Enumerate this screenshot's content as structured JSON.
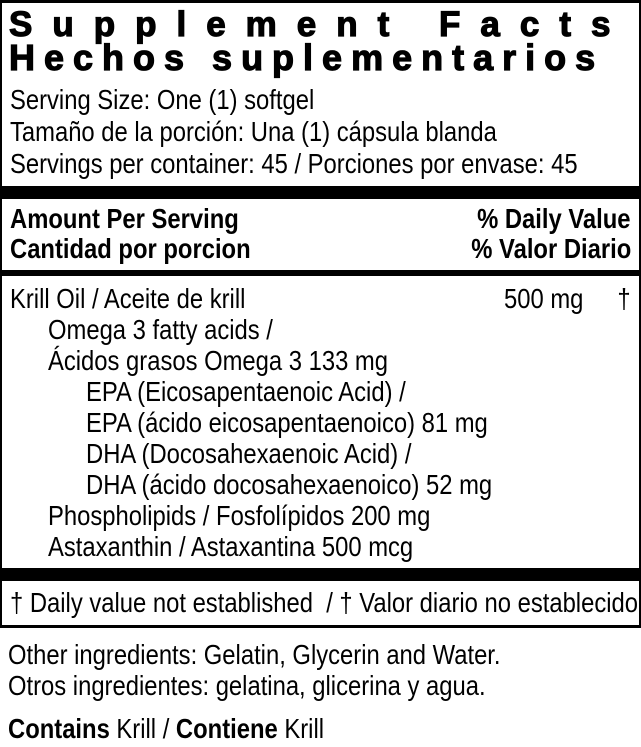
{
  "colors": {
    "ink": "#000000",
    "background": "#ffffff"
  },
  "panel": {
    "title_en": "Supplement Facts",
    "title_es": "Hechos suplementarios",
    "serving": {
      "line1": "Serving Size: One (1) softgel",
      "line2": "Tamaño de la porción: Una (1) cápsula blanda",
      "line3": "Servings per container: 45 / Porciones por envase: 45"
    },
    "header": {
      "left_en": "Amount Per Serving",
      "left_es": "Cantidad por porcion",
      "right_en": "% Daily Value",
      "right_es": "% Valor Diario"
    },
    "rows": [
      {
        "name": "Krill Oil / Aceite de krill",
        "amount": "500 mg",
        "daily_value": "†",
        "indent": 0
      },
      {
        "name": "Omega 3 fatty acids /",
        "indent": 1
      },
      {
        "name": "Ácidos grasos Omega 3 133 mg",
        "indent": 1
      },
      {
        "name": "EPA (Eicosapentaenoic Acid) /",
        "indent": 2
      },
      {
        "name": "EPA (ácido eicosapentaenoico) 81 mg",
        "indent": 2
      },
      {
        "name": "DHA (Docosahexaenoic Acid) /",
        "indent": 2
      },
      {
        "name": "DHA (ácido docosahexaenoico) 52 mg",
        "indent": 2
      },
      {
        "name": "Phospholipids / Fosfolípidos 200 mg",
        "indent": 1
      },
      {
        "name": "Astaxanthin / Astaxantina 500 mcg",
        "indent": 1
      }
    ],
    "footnote": "† Daily value not established  / † Valor diario no establecido"
  },
  "other_ingredients": {
    "line_en": "Other ingredients: Gelatin, Glycerin and Water.",
    "line_es": "Otros ingredientes: gelatina, glicerina y agua."
  },
  "contains": {
    "segments": [
      {
        "text": "Contains",
        "bold": true
      },
      {
        "text": " Krill / ",
        "bold": false
      },
      {
        "text": "Contiene",
        "bold": true
      },
      {
        "text": " Krill",
        "bold": false
      }
    ]
  }
}
